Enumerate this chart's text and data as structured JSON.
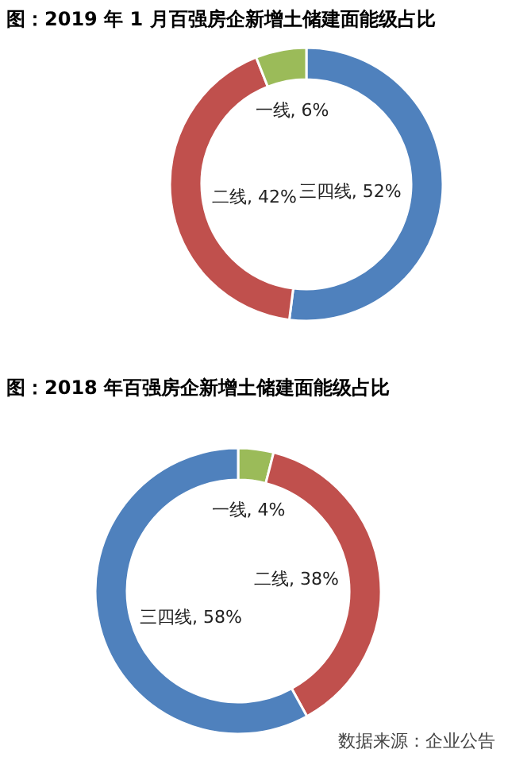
{
  "chart_data": [
    {
      "type": "donut",
      "title": "图：2019 年 1 月百强房企新增土储建面能级占比",
      "categories": [
        "三四线",
        "二线",
        "一线"
      ],
      "values": [
        52,
        42,
        6
      ],
      "colors": [
        "#4f81bd",
        "#c0504d",
        "#9bbb59"
      ],
      "value_labels": [
        "52%",
        "42%",
        "6%"
      ]
    },
    {
      "type": "donut",
      "title": "图：2018 年百强房企新增土储建面能级占比",
      "categories": [
        "一线",
        "二线",
        "三四线"
      ],
      "values": [
        4,
        38,
        58
      ],
      "colors": [
        "#9bbb59",
        "#c0504d",
        "#4f81bd"
      ],
      "value_labels": [
        "4%",
        "38%",
        "58%"
      ],
      "annotations": [
        "数据来源：企业公告"
      ]
    }
  ]
}
